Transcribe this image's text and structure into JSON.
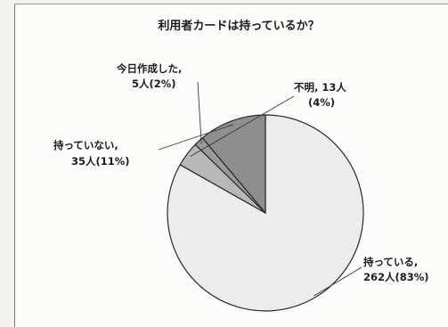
{
  "chart_data": {
    "type": "pie",
    "title": "利用者カードは持っているか？",
    "categories": [
      "持っている",
      "不明",
      "今日作成した",
      "持っていない"
    ],
    "values": [
      262,
      13,
      5,
      35
    ],
    "percents": [
      "83%",
      "4%",
      "2%",
      "11%"
    ],
    "labels": [
      {
        "line1": "持っている,",
        "line2": "262人(83%)"
      },
      {
        "line1": "不明, 13人",
        "line2": "(4%)"
      },
      {
        "line1": "今日作成した,",
        "line2": "5人(2%)"
      },
      {
        "line1": "持っていない,",
        "line2": "35人(11%)"
      }
    ],
    "colors": [
      "#ececec",
      "#b8b8b8",
      "#9a9a9a",
      "#8e8e8e"
    ],
    "legend": "none"
  }
}
